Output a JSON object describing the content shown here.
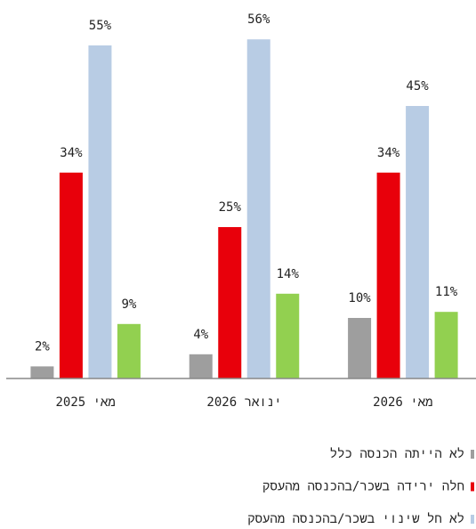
{
  "chart_data": {
    "type": "bar",
    "categories": [
      "מאי 2025",
      "ינואר 2026",
      "מאי 2026"
    ],
    "series": [
      {
        "name": "לא הייתה הכנסה כלל",
        "color": "#9e9e9e",
        "values": [
          2,
          4,
          10
        ],
        "value_labels": [
          "2%",
          "4%",
          "10%"
        ]
      },
      {
        "name": "חלה ירידה בשכר/בהכנסה מהעסק",
        "color": "#e8000b",
        "values": [
          34,
          25,
          34
        ],
        "value_labels": [
          "34%",
          "25%",
          "34%"
        ]
      },
      {
        "name": "לא חל שינוי בשכר/בהכנסה מהעסק",
        "color": "#b8cce4",
        "values": [
          55,
          56,
          45
        ],
        "value_labels": [
          "55%",
          "56%",
          "45%"
        ]
      },
      {
        "color": "#92d050",
        "values": [
          9,
          14,
          11
        ],
        "value_labels": [
          "9%",
          "14%",
          "11%"
        ]
      }
    ],
    "ylim": [
      0,
      60
    ]
  }
}
